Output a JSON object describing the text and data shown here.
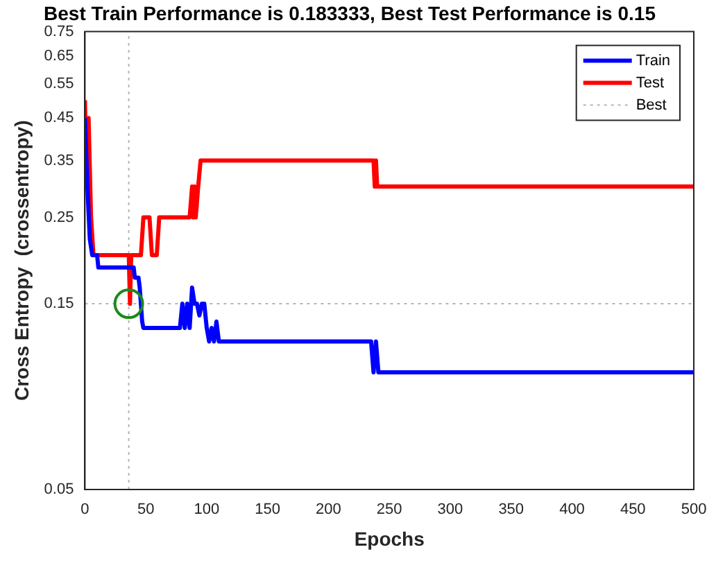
{
  "chart_data": {
    "type": "line",
    "title": "Best Train Performance is 0.183333, Best Test Performance is 0.15",
    "xlabel": "Epochs",
    "ylabel": "Cross Entropy  (crossentropy)",
    "log": "y",
    "xlim": [
      0,
      500
    ],
    "xticks": [
      0,
      50,
      100,
      150,
      200,
      250,
      300,
      350,
      400,
      450,
      500
    ],
    "ylim": [
      0.05,
      0.75
    ],
    "yticks": [
      0.05,
      0.15,
      0.25,
      0.35,
      0.45,
      0.55,
      0.65,
      0.75
    ],
    "grid": false,
    "legend": "top right",
    "line_style": "solid",
    "series": [
      {
        "name": "Train",
        "color": "#0000ff",
        "x": [
          0,
          2,
          4,
          6,
          10,
          11,
          40,
          41,
          44,
          45,
          47,
          48,
          78,
          80,
          82,
          84,
          86,
          88,
          90,
          92,
          94,
          96,
          98,
          100,
          102,
          104,
          106,
          108,
          110,
          235,
          237,
          239,
          241,
          500
        ],
        "values": [
          0.45,
          0.3,
          0.22,
          0.2,
          0.2,
          0.186,
          0.186,
          0.175,
          0.175,
          0.165,
          0.135,
          0.13,
          0.13,
          0.15,
          0.13,
          0.15,
          0.13,
          0.165,
          0.15,
          0.15,
          0.14,
          0.15,
          0.15,
          0.13,
          0.12,
          0.13,
          0.12,
          0.135,
          0.12,
          0.12,
          0.1,
          0.12,
          0.1,
          0.1
        ]
      },
      {
        "name": "Test",
        "color": "#ff0000",
        "x": [
          0,
          1,
          3,
          5,
          7,
          36,
          37,
          38,
          46,
          48,
          53,
          55,
          59,
          61,
          86,
          88,
          89,
          90,
          91,
          93,
          95,
          237,
          238,
          239,
          240,
          500
        ],
        "values": [
          0.5,
          0.35,
          0.45,
          0.25,
          0.2,
          0.2,
          0.15,
          0.2,
          0.2,
          0.25,
          0.25,
          0.2,
          0.2,
          0.25,
          0.25,
          0.3,
          0.25,
          0.3,
          0.25,
          0.3,
          0.35,
          0.35,
          0.3,
          0.35,
          0.3,
          0.3
        ]
      },
      {
        "name": "Best",
        "color": "#b4b4b4",
        "line_style": "dotted",
        "x": [
          36,
          36
        ],
        "values": [
          0.05,
          0.75
        ]
      },
      {
        "type": "scatter",
        "color": "#1a8a1a",
        "marker": "circle",
        "x": [
          36
        ],
        "values": [
          0.15
        ]
      }
    ],
    "ref_lines": [
      {
        "axis": "y",
        "value": 0.15,
        "color": "#b4b4b4",
        "line_style": "dotted"
      }
    ]
  }
}
